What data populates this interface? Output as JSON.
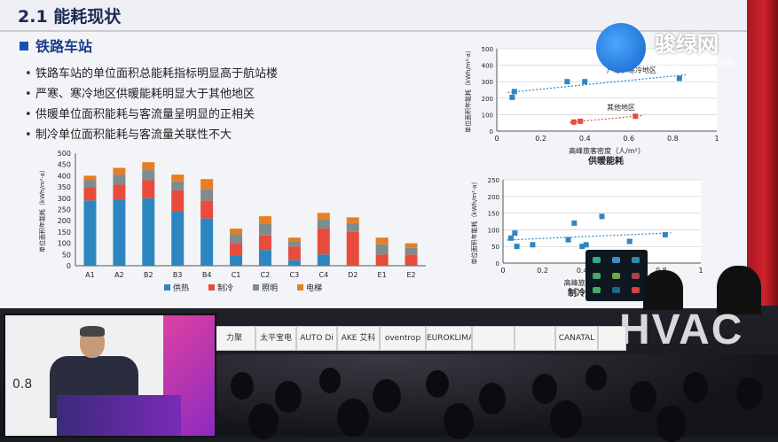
{
  "slide": {
    "title": "2.1 能耗现状",
    "section": "铁路车站",
    "bullets": [
      "铁路车站的单位面积总能耗指标明显高于航站楼",
      "严寒、寒冷地区供暖能耗明显大于其他地区",
      "供暖单位面积能耗与客流量呈明显的正相关",
      "制冷单位面积能耗与客流量关联性不大"
    ]
  },
  "logo": {
    "cn": "骏绿网",
    "en": "Jungreen.com"
  },
  "chart_data": [
    {
      "type": "bar",
      "stacked": true,
      "categories": [
        "A1",
        "A2",
        "B2",
        "B3",
        "B4",
        "C1",
        "C2",
        "C3",
        "C4",
        "D2",
        "E1",
        "E2"
      ],
      "ylabel": "单位面积年能耗（kWh/m²·a）",
      "ylim": [
        0,
        500
      ],
      "yticks": [
        0,
        50,
        100,
        150,
        200,
        250,
        300,
        350,
        400,
        450,
        500
      ],
      "legend_position": "bottom",
      "series": [
        {
          "name": "供热",
          "color": "#2e86c1",
          "values": [
            290,
            295,
            300,
            240,
            210,
            45,
            70,
            25,
            50,
            0,
            0,
            0
          ]
        },
        {
          "name": "制冷",
          "color": "#e74c3c",
          "values": [
            60,
            65,
            80,
            95,
            80,
            55,
            65,
            60,
            115,
            150,
            50,
            50
          ]
        },
        {
          "name": "照明",
          "color": "#7f8c8d",
          "values": [
            30,
            45,
            45,
            40,
            50,
            40,
            50,
            25,
            40,
            40,
            45,
            30
          ]
        },
        {
          "name": "电梯",
          "color": "#e67e22",
          "values": [
            20,
            30,
            35,
            30,
            45,
            25,
            35,
            15,
            30,
            25,
            30,
            20
          ]
        }
      ]
    },
    {
      "type": "scatter",
      "title": "供暖能耗",
      "xlabel": "高峰旅客密度（人/m²）",
      "ylabel": "单位面积年能耗（kWh/m²·a）",
      "xlim": [
        0,
        1
      ],
      "ylim": [
        0,
        500
      ],
      "xticks": [
        0,
        0.2,
        0.4,
        0.6,
        0.8,
        1
      ],
      "yticks": [
        0,
        100,
        200,
        300,
        400,
        500
      ],
      "annotations": [
        "严寒、寒冷地区",
        "其他地区"
      ],
      "series": [
        {
          "name": "严寒、寒冷地区",
          "color": "#2e86c1",
          "points": [
            [
              0.07,
              205
            ],
            [
              0.08,
              240
            ],
            [
              0.32,
              300
            ],
            [
              0.4,
              300
            ],
            [
              0.83,
              320
            ]
          ]
        },
        {
          "name": "其他地区",
          "color": "#e74c3c",
          "points": [
            [
              0.35,
              55
            ],
            [
              0.38,
              60
            ],
            [
              0.63,
              90
            ]
          ]
        }
      ]
    },
    {
      "type": "scatter",
      "title": "制冷能耗",
      "xlabel": "高峰旅客密度（人/m²）",
      "ylabel": "单位面积年能耗（kWh/m²·a）",
      "xlim": [
        0,
        1
      ],
      "ylim": [
        0,
        250
      ],
      "xticks": [
        0,
        0.2,
        0.4,
        0.6,
        0.8,
        1
      ],
      "yticks": [
        0,
        50,
        100,
        150,
        200,
        250
      ],
      "series": [
        {
          "name": "",
          "color": "#2e86c1",
          "points": [
            [
              0.04,
              75
            ],
            [
              0.06,
              90
            ],
            [
              0.07,
              50
            ],
            [
              0.15,
              55
            ],
            [
              0.33,
              70
            ],
            [
              0.36,
              120
            ],
            [
              0.4,
              50
            ],
            [
              0.42,
              55
            ],
            [
              0.5,
              140
            ],
            [
              0.64,
              65
            ],
            [
              0.82,
              85
            ]
          ]
        }
      ]
    }
  ],
  "sponsors": [
    "力聚",
    "太平宝电",
    "AUTO Di",
    "AKE 艾科",
    "oventrop",
    "EUROKLIMAT",
    "",
    "",
    "CANATAL",
    ""
  ],
  "stage_banner": "HVAC",
  "pip": {
    "value": "0.8"
  }
}
